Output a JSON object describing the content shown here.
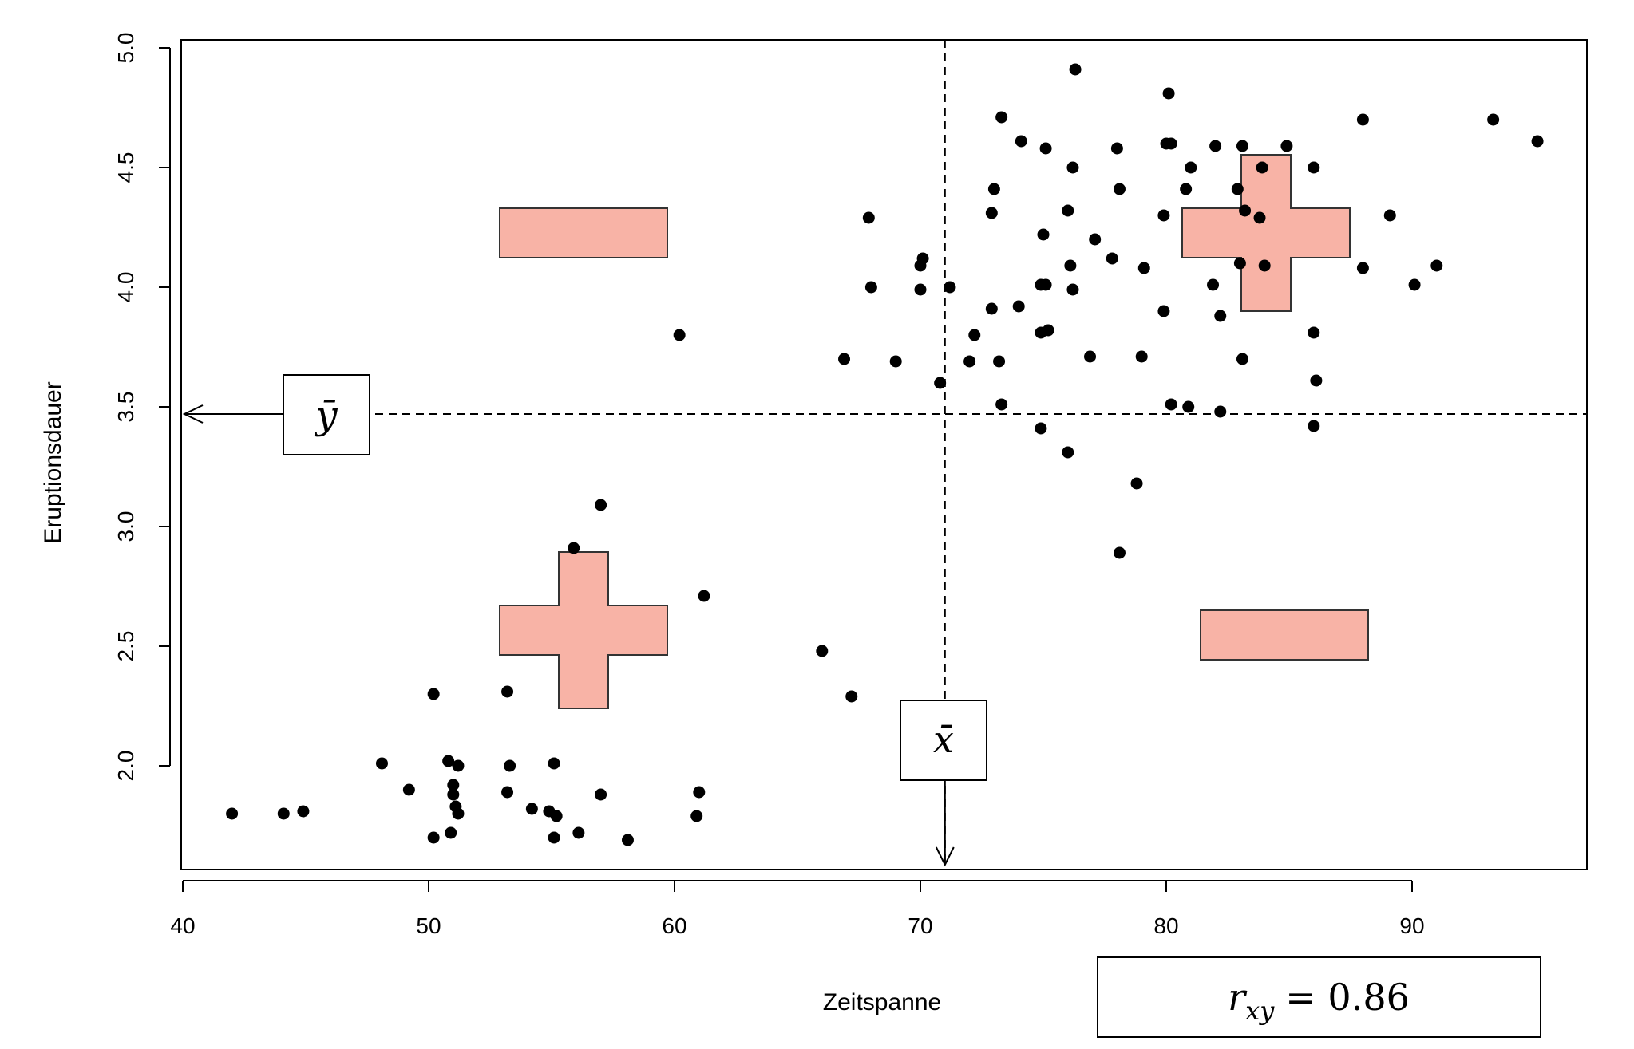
{
  "chart_data": {
    "type": "scatter",
    "title": "",
    "xlabel": "Zeitspanne",
    "ylabel": "Eruptionsdauer",
    "xlim": [
      40,
      97
    ],
    "ylim": [
      1.6,
      5.05
    ],
    "x_ticks": [
      40,
      50,
      60,
      70,
      80,
      90
    ],
    "y_ticks": [
      "2.0",
      "2.5",
      "3.0",
      "3.5",
      "4.0",
      "4.5",
      "5.0"
    ],
    "grid": false,
    "mean_x": 71,
    "mean_y": 3.47,
    "mean_x_label": "x̄",
    "mean_y_label": "ȳ",
    "correlation_label": "r_xy = 0.86",
    "correlation_symbol": "r",
    "correlation_subscript": "xy",
    "correlation_value": "= 0.86",
    "quadrant_signs": [
      {
        "quadrant": "top-left",
        "sign": "minus"
      },
      {
        "quadrant": "top-right",
        "sign": "plus"
      },
      {
        "quadrant": "bottom-left",
        "sign": "plus"
      },
      {
        "quadrant": "bottom-right",
        "sign": "minus"
      }
    ],
    "sign_color": "#f8b3a6",
    "point_color": "#000000",
    "points": [
      [
        42,
        1.8
      ],
      [
        44.1,
        1.8
      ],
      [
        44.9,
        1.81
      ],
      [
        48.1,
        2.01
      ],
      [
        49.2,
        1.9
      ],
      [
        50.2,
        1.7
      ],
      [
        50.2,
        2.3
      ],
      [
        50.9,
        1.72
      ],
      [
        50.8,
        2.02
      ],
      [
        51,
        1.92
      ],
      [
        51,
        1.88
      ],
      [
        51.1,
        1.83
      ],
      [
        51.2,
        1.8
      ],
      [
        51.2,
        2.0
      ],
      [
        53.2,
        1.89
      ],
      [
        53.2,
        2.31
      ],
      [
        53.3,
        2.0
      ],
      [
        54.2,
        1.82
      ],
      [
        54.9,
        1.81
      ],
      [
        55.2,
        1.79
      ],
      [
        55.1,
        1.7
      ],
      [
        55.1,
        2.01
      ],
      [
        55.9,
        2.91
      ],
      [
        56.1,
        1.72
      ],
      [
        57,
        1.88
      ],
      [
        57,
        3.09
      ],
      [
        58.1,
        1.69
      ],
      [
        60.2,
        3.8
      ],
      [
        60.9,
        1.79
      ],
      [
        61,
        1.89
      ],
      [
        61.2,
        2.71
      ],
      [
        66,
        2.48
      ],
      [
        67.2,
        2.29
      ],
      [
        66.9,
        3.7
      ],
      [
        67.9,
        4.29
      ],
      [
        68,
        4.0
      ],
      [
        69,
        3.69
      ],
      [
        70,
        3.99
      ],
      [
        70,
        4.09
      ],
      [
        70.1,
        4.12
      ],
      [
        70.8,
        3.6
      ],
      [
        71.2,
        4.0
      ],
      [
        72,
        3.69
      ],
      [
        72.2,
        3.8
      ],
      [
        72.9,
        3.91
      ],
      [
        72.9,
        4.31
      ],
      [
        73,
        4.41
      ],
      [
        73.2,
        3.69
      ],
      [
        73.3,
        3.51
      ],
      [
        73.3,
        4.71
      ],
      [
        74,
        3.92
      ],
      [
        74.1,
        4.61
      ],
      [
        74.9,
        3.41
      ],
      [
        74.9,
        3.81
      ],
      [
        74.9,
        4.01
      ],
      [
        75,
        4.22
      ],
      [
        75.1,
        4.01
      ],
      [
        75.1,
        4.58
      ],
      [
        75.2,
        3.82
      ],
      [
        76,
        4.32
      ],
      [
        76,
        3.31
      ],
      [
        76.1,
        4.09
      ],
      [
        76.2,
        3.99
      ],
      [
        76.2,
        4.5
      ],
      [
        76.3,
        4.91
      ],
      [
        76.9,
        3.71
      ],
      [
        77.1,
        4.2
      ],
      [
        77.8,
        4.12
      ],
      [
        78,
        4.58
      ],
      [
        78.1,
        4.41
      ],
      [
        78.1,
        2.89
      ],
      [
        78.8,
        3.18
      ],
      [
        79,
        3.71
      ],
      [
        79.1,
        4.08
      ],
      [
        79.9,
        3.9
      ],
      [
        79.9,
        4.3
      ],
      [
        80,
        4.6
      ],
      [
        80.1,
        4.81
      ],
      [
        80.2,
        3.51
      ],
      [
        80.2,
        4.6
      ],
      [
        80.8,
        4.41
      ],
      [
        80.9,
        3.5
      ],
      [
        81,
        4.5
      ],
      [
        81.9,
        4.01
      ],
      [
        82,
        4.59
      ],
      [
        82.2,
        3.88
      ],
      [
        82.2,
        3.48
      ],
      [
        82.9,
        4.41
      ],
      [
        83,
        4.1
      ],
      [
        83.1,
        4.59
      ],
      [
        83.1,
        3.7
      ],
      [
        83.2,
        4.32
      ],
      [
        83.8,
        4.29
      ],
      [
        83.9,
        4.5
      ],
      [
        84,
        4.09
      ],
      [
        84.9,
        4.59
      ],
      [
        86,
        4.5
      ],
      [
        86,
        3.81
      ],
      [
        86,
        3.42
      ],
      [
        86.1,
        3.61
      ],
      [
        88,
        4.7
      ],
      [
        88,
        4.08
      ],
      [
        89.1,
        4.3
      ],
      [
        90.1,
        4.01
      ],
      [
        91,
        4.09
      ],
      [
        93.3,
        4.7
      ],
      [
        95.1,
        4.61
      ]
    ]
  }
}
